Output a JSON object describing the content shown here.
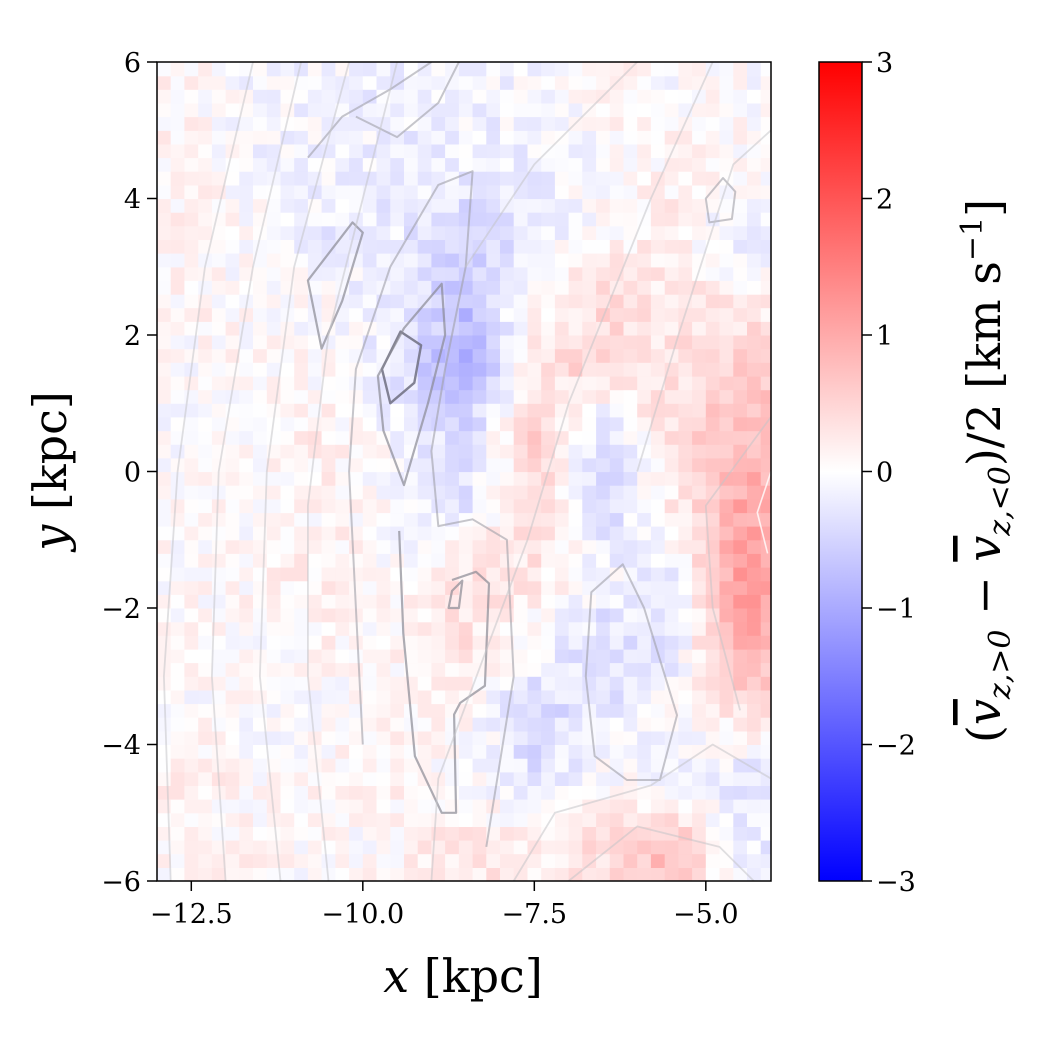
{
  "chart_data": {
    "type": "heatmap",
    "xlabel": {
      "var": "x",
      "unit": " [kpc]"
    },
    "ylabel": {
      "var": "y",
      "unit": " [kpc]"
    },
    "colorbar_label": {
      "open": "(",
      "v1": "v",
      "sub1": "z,>0",
      "minus": " − ",
      "v2": "v",
      "sub2": "z,<0",
      "close": ")/2 [km s",
      "sup": "−1",
      "end": "]"
    },
    "xlim": [
      -13,
      -4.05
    ],
    "ylim": [
      -6,
      6
    ],
    "clim": [
      -3,
      3
    ],
    "colormap": "bwr",
    "colormap_colors": {
      "low": "#0000ff",
      "mid": "#ffffff",
      "high": "#ff0000"
    },
    "xticks": [
      -12.5,
      -10.0,
      -7.5,
      -5.0
    ],
    "xtick_labels": [
      "−12.5",
      "−10.0",
      "−7.5",
      "−5.0"
    ],
    "yticks": [
      6,
      4,
      2,
      0,
      -2,
      -4,
      -6
    ],
    "ytick_labels": [
      "6",
      "4",
      "2",
      "0",
      "−2",
      "−4",
      "−6"
    ],
    "cbar_ticks": [
      3,
      2,
      1,
      0,
      -1,
      -2,
      -3
    ],
    "cbar_tick_labels": [
      "3",
      "2",
      "1",
      "0",
      "−1",
      "−2",
      "−3"
    ],
    "grid_x_centers": [
      -12.5,
      -11.5,
      -10.5,
      -9.5,
      -8.5,
      -7.5,
      -6.5,
      -5.5,
      -4.5
    ],
    "grid_y_centers": [
      5.5,
      4.5,
      3.5,
      2.5,
      1.5,
      0.5,
      -0.5,
      -1.5,
      -2.5,
      -3.5,
      -4.5,
      -5.5
    ],
    "values": [
      [
        0.1,
        -0.1,
        -0.1,
        -0.2,
        -0.1,
        -0.1,
        0.1,
        0.0,
        0.0
      ],
      [
        0.1,
        -0.1,
        -0.1,
        -0.2,
        -0.2,
        -0.2,
        0.0,
        0.1,
        0.1
      ],
      [
        0.1,
        0.0,
        -0.2,
        -0.2,
        -0.5,
        -0.3,
        0.1,
        0.2,
        -0.3
      ],
      [
        0.1,
        0.0,
        0.0,
        -0.2,
        -0.7,
        0.1,
        0.4,
        0.3,
        0.2
      ],
      [
        0.0,
        0.1,
        0.0,
        -0.3,
        -1.0,
        0.3,
        0.5,
        0.3,
        0.6
      ],
      [
        0.0,
        0.1,
        0.2,
        -0.1,
        -0.4,
        0.5,
        -0.4,
        0.3,
        0.8
      ],
      [
        0.1,
        0.0,
        0.1,
        0.0,
        -0.3,
        0.5,
        -0.5,
        0.2,
        1.0
      ],
      [
        0.0,
        0.1,
        0.2,
        0.0,
        0.3,
        0.3,
        -0.1,
        -0.2,
        1.1
      ],
      [
        0.1,
        0.0,
        0.1,
        0.1,
        0.3,
        0.0,
        -0.4,
        -0.3,
        1.0
      ],
      [
        0.0,
        0.0,
        0.0,
        0.1,
        0.1,
        -0.5,
        -0.3,
        0.0,
        0.3
      ],
      [
        0.2,
        0.0,
        0.1,
        0.1,
        0.0,
        -0.3,
        0.0,
        -0.1,
        -0.3
      ],
      [
        0.1,
        0.1,
        0.0,
        0.1,
        0.3,
        0.2,
        0.4,
        0.8,
        -0.2
      ]
    ],
    "contours": [
      {
        "level": "high",
        "closed": true,
        "points": [
          [
            -9.6,
            1.0
          ],
          [
            -9.72,
            1.5
          ],
          [
            -9.45,
            2.05
          ],
          [
            -9.15,
            1.85
          ],
          [
            -9.25,
            1.3
          ],
          [
            -9.6,
            1.0
          ]
        ]
      },
      {
        "level": "mid",
        "closed": true,
        "points": [
          [
            -9.4,
            -0.2
          ],
          [
            -9.7,
            0.6
          ],
          [
            -9.78,
            1.4
          ],
          [
            -9.4,
            2.1
          ],
          [
            -8.85,
            2.75
          ],
          [
            -8.8,
            2.0
          ],
          [
            -9.05,
            1.0
          ],
          [
            -9.4,
            -0.2
          ]
        ]
      },
      {
        "level": "mid",
        "closed": true,
        "points": [
          [
            -10.6,
            1.8
          ],
          [
            -10.8,
            2.8
          ],
          [
            -10.15,
            3.65
          ],
          [
            -10.0,
            3.5
          ],
          [
            -10.3,
            2.5
          ],
          [
            -10.6,
            1.8
          ]
        ]
      },
      {
        "level": "mid",
        "closed": false,
        "points": [
          [
            -9.47,
            -0.87
          ],
          [
            -9.41,
            -2.37
          ],
          [
            -9.24,
            -4.17
          ],
          [
            -8.85,
            -5.0
          ],
          [
            -8.64,
            -5.0
          ],
          [
            -8.67,
            -3.56
          ],
          [
            -8.58,
            -3.39
          ],
          [
            -8.22,
            -3.14
          ],
          [
            -8.16,
            -1.64
          ],
          [
            -8.35,
            -1.47
          ],
          [
            -8.7,
            -1.59
          ]
        ]
      },
      {
        "level": "mid",
        "closed": true,
        "points": [
          [
            -8.7,
            -1.75
          ],
          [
            -8.55,
            -1.6
          ],
          [
            -8.6,
            -2.0
          ],
          [
            -8.75,
            -2.0
          ]
        ]
      },
      {
        "level": "low",
        "closed": false,
        "points": [
          [
            -10.0,
            -4.0
          ],
          [
            -10.1,
            -2.0
          ],
          [
            -10.2,
            0.0
          ],
          [
            -10.1,
            1.5
          ],
          [
            -9.6,
            3.0
          ],
          [
            -8.9,
            4.2
          ],
          [
            -8.4,
            4.4
          ],
          [
            -8.5,
            3.0
          ],
          [
            -8.8,
            1.5
          ],
          [
            -9.0,
            0.3
          ],
          [
            -8.9,
            -0.8
          ],
          [
            -8.4,
            -0.7
          ],
          [
            -7.9,
            -1.0
          ],
          [
            -7.8,
            -3.0
          ],
          [
            -8.2,
            -5.5
          ]
        ]
      },
      {
        "level": "low",
        "closed": true,
        "points": [
          [
            -6.67,
            -1.77
          ],
          [
            -6.21,
            -1.36
          ],
          [
            -5.9,
            -2.0
          ],
          [
            -5.42,
            -3.57
          ],
          [
            -5.67,
            -4.52
          ],
          [
            -6.15,
            -4.52
          ],
          [
            -6.62,
            -4.17
          ],
          [
            -6.75,
            -3.0
          ],
          [
            -6.67,
            -1.77
          ]
        ]
      },
      {
        "level": "low",
        "closed": true,
        "points": [
          [
            -4.95,
            3.65
          ],
          [
            -5.0,
            4.0
          ],
          [
            -4.75,
            4.3
          ],
          [
            -4.57,
            4.1
          ],
          [
            -4.62,
            3.7
          ],
          [
            -4.95,
            3.65
          ]
        ]
      },
      {
        "level": "low",
        "closed": false,
        "points": [
          [
            -10.8,
            4.6
          ],
          [
            -10.3,
            5.2
          ],
          [
            -9.6,
            5.6
          ],
          [
            -9.0,
            6.0
          ]
        ]
      },
      {
        "level": "low",
        "closed": false,
        "points": [
          [
            -10.1,
            5.2
          ],
          [
            -9.5,
            4.9
          ],
          [
            -8.9,
            5.4
          ],
          [
            -8.6,
            6.0
          ]
        ]
      },
      {
        "level": "faint",
        "closed": false,
        "points": [
          [
            -12.8,
            -6.0
          ],
          [
            -12.9,
            -3.0
          ],
          [
            -12.7,
            0.0
          ],
          [
            -12.3,
            3.0
          ],
          [
            -11.6,
            6.0
          ]
        ]
      },
      {
        "level": "faint",
        "closed": false,
        "points": [
          [
            -12.0,
            -6.0
          ],
          [
            -12.2,
            -3.0
          ],
          [
            -12.1,
            0.0
          ],
          [
            -11.6,
            3.0
          ],
          [
            -10.9,
            6.0
          ]
        ]
      },
      {
        "level": "faint",
        "closed": false,
        "points": [
          [
            -11.2,
            -6.0
          ],
          [
            -11.5,
            -3.0
          ],
          [
            -11.4,
            0.0
          ],
          [
            -11.0,
            3.0
          ],
          [
            -10.2,
            6.0
          ]
        ]
      },
      {
        "level": "faint",
        "closed": false,
        "points": [
          [
            -10.5,
            -6.0
          ],
          [
            -10.8,
            -3.0
          ],
          [
            -10.8,
            -0.5
          ],
          [
            -10.5,
            2.0
          ],
          [
            -10.0,
            4.0
          ],
          [
            -9.5,
            6.0
          ]
        ]
      },
      {
        "level": "faint",
        "closed": false,
        "points": [
          [
            -9.0,
            -6.0
          ],
          [
            -8.9,
            -4.5
          ],
          [
            -7.6,
            -1.0
          ],
          [
            -7.0,
            1.0
          ],
          [
            -5.8,
            4.0
          ],
          [
            -4.9,
            6.0
          ]
        ]
      },
      {
        "level": "faint",
        "closed": false,
        "points": [
          [
            -7.8,
            -6.0
          ],
          [
            -7.2,
            -5.0
          ],
          [
            -5.8,
            -4.6
          ],
          [
            -4.9,
            -4.0
          ],
          [
            -4.05,
            -4.5
          ]
        ]
      },
      {
        "level": "faint",
        "closed": false,
        "points": [
          [
            -7.0,
            -6.0
          ],
          [
            -6.0,
            -5.2
          ],
          [
            -4.8,
            -5.5
          ],
          [
            -4.3,
            -6.0
          ]
        ]
      },
      {
        "level": "faint",
        "closed": false,
        "points": [
          [
            -8.5,
            3.0
          ],
          [
            -7.5,
            4.5
          ],
          [
            -6.5,
            5.5
          ],
          [
            -6.0,
            6.0
          ]
        ]
      },
      {
        "level": "faint",
        "closed": false,
        "points": [
          [
            -6.0,
            0.0
          ],
          [
            -5.4,
            2.0
          ],
          [
            -4.6,
            4.5
          ],
          [
            -4.05,
            5.0
          ]
        ]
      },
      {
        "level": "faint",
        "closed": false,
        "points": [
          [
            -4.5,
            -3.5
          ],
          [
            -4.9,
            -2.0
          ],
          [
            -5.0,
            -0.5
          ],
          [
            -4.05,
            0.8
          ]
        ]
      },
      {
        "level": "white",
        "closed": false,
        "points": [
          [
            -4.05,
            0.0
          ],
          [
            -4.25,
            -0.6
          ],
          [
            -4.1,
            -1.2
          ]
        ]
      }
    ]
  }
}
